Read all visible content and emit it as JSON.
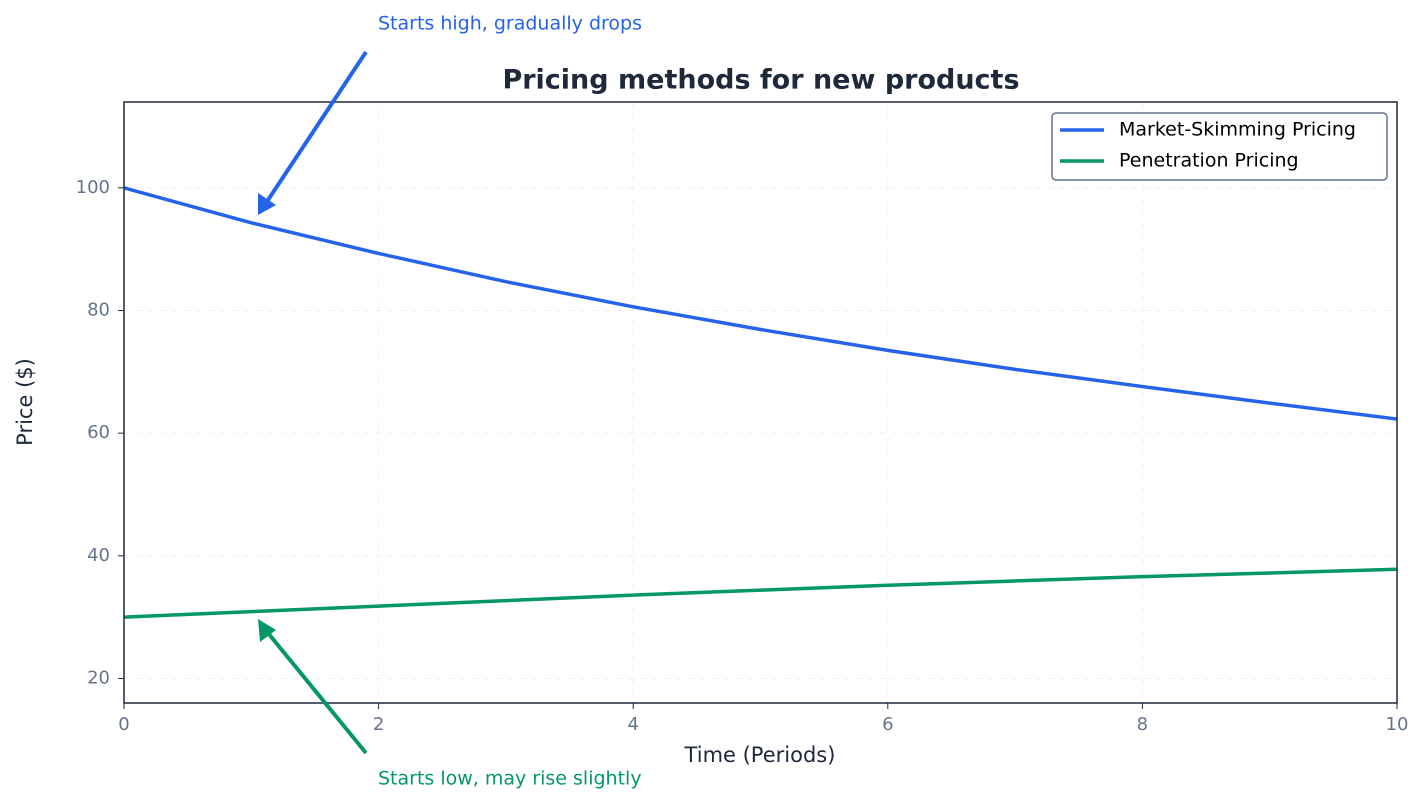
{
  "chart_data": {
    "type": "line",
    "title": "Pricing methods for new products",
    "x_label": "Time (Periods)",
    "y_label": "Price ($)",
    "x": [
      0,
      1,
      2,
      3,
      4,
      5,
      6,
      7,
      8,
      9,
      10
    ],
    "series": [
      {
        "name": "Market-Skimming Pricing",
        "color": "#2563eb",
        "values": [
          100,
          94.3,
          89.3,
          84.7,
          80.6,
          76.9,
          73.5,
          70.4,
          67.6,
          64.9,
          62.3
        ]
      },
      {
        "name": "Penetration Pricing",
        "color": "#059669",
        "values": [
          30,
          30.9,
          31.8,
          32.7,
          33.6,
          34.4,
          35.2,
          35.9,
          36.6,
          37.2,
          37.8
        ]
      }
    ],
    "xlim": [
      0,
      10
    ],
    "xticks": [
      0,
      2,
      4,
      6,
      8,
      10
    ],
    "ylim": [
      16,
      114
    ],
    "yticks": [
      20,
      40,
      60,
      80,
      100
    ],
    "grid": true,
    "legend": "upper right",
    "annotations": [
      "Starts high, gradually drops",
      "Starts low, may rise slightly"
    ]
  }
}
